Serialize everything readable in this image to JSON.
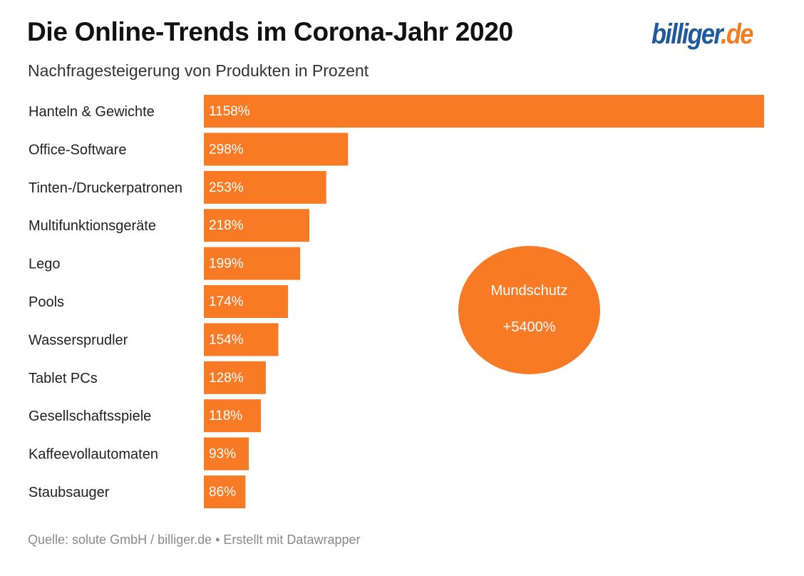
{
  "header": {
    "title": "Die Online-Trends im Corona-Jahr 2020",
    "subtitle": "Nachfragesteigerung von Produkten in Prozent",
    "logo_part1": "billiger",
    "logo_part2": ".de"
  },
  "annotation": {
    "label": "Mundschutz",
    "value": "+5400%"
  },
  "footer": {
    "text": "Quelle: solute GmbH / billiger.de • Erstellt mit Datawrapper"
  },
  "colors": {
    "bar": "#f87a25",
    "bar_label": "#ffffff",
    "category_label": "#222222",
    "logo_blue": "#1e5a9c",
    "logo_orange": "#f47b20"
  },
  "chart_data": {
    "type": "bar",
    "orientation": "horizontal",
    "categories": [
      "Hanteln & Gewichte",
      "Office-Software",
      "Tinten-/Druckerpatronen",
      "Multifunktionsgeräte",
      "Lego",
      "Pools",
      "Wassersprudler",
      "Tablet PCs",
      "Gesellschaftsspiele",
      "Kaffeevollautomaten",
      "Staubsauger"
    ],
    "values": [
      1158,
      298,
      253,
      218,
      199,
      174,
      154,
      128,
      118,
      93,
      86
    ],
    "value_labels": [
      "1158%",
      "298%",
      "253%",
      "218%",
      "199%",
      "174%",
      "154%",
      "128%",
      "118%",
      "93%",
      "86%"
    ],
    "title": "Die Online-Trends im Corona-Jahr 2020",
    "subtitle": "Nachfragesteigerung von Produkten in Prozent",
    "xlim": [
      0,
      1158
    ],
    "grid": false,
    "legend": "none"
  }
}
